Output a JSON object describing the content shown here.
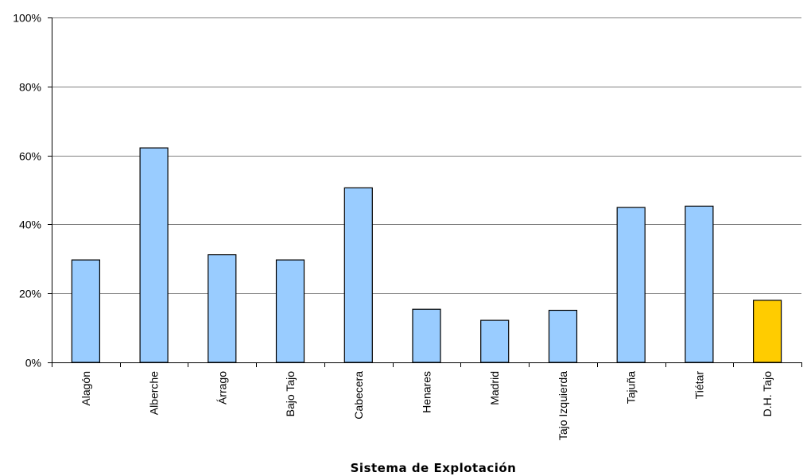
{
  "chart_data": {
    "type": "bar",
    "title": "",
    "xlabel": "Sistema de Explotación",
    "ylabel": "",
    "categories": [
      "Alagón",
      "Alberche",
      "Árrago",
      "Bajo Tajo",
      "Cabecera",
      "Henares",
      "Madrid",
      "Tajo Izquierda",
      "Tajuña",
      "Tiétar",
      "D.H. Tajo"
    ],
    "values": [
      29.7,
      62.2,
      31.2,
      29.7,
      50.6,
      15.4,
      12.2,
      15.1,
      44.9,
      45.3,
      18.0
    ],
    "ylim": [
      0,
      100
    ],
    "yticks": [
      0,
      20,
      40,
      60,
      80,
      100
    ],
    "ytick_labels": [
      "0%",
      "20%",
      "40%",
      "60%",
      "80%",
      "100%"
    ],
    "grid": true,
    "legend": "none",
    "colors": {
      "bar": "#99CCFF",
      "highlight_bar": "#FFCC00",
      "bar_edge": "#000000",
      "grid": "#808080",
      "axis": "#000000"
    },
    "highlight_index": 10
  }
}
